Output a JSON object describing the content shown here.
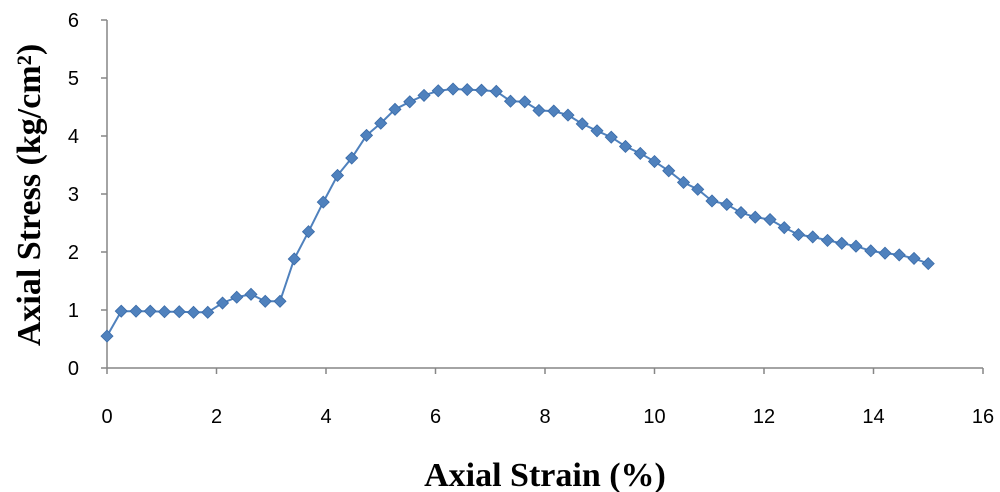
{
  "chart_data": {
    "type": "line",
    "title": "",
    "xlabel": "Axial Strain (%)",
    "ylabel": "Axial Stress (kg/cm²)",
    "xlim": [
      0,
      16
    ],
    "ylim": [
      0,
      6
    ],
    "x_ticks": [
      "0",
      "2",
      "4",
      "6",
      "8",
      "10",
      "12",
      "14",
      "16"
    ],
    "y_ticks": [
      "0",
      "1",
      "2",
      "3",
      "4",
      "5",
      "6"
    ],
    "grid": false,
    "legend": "none",
    "series_color": "#4F81BD",
    "series": [
      {
        "x": [
          0,
          0.26,
          0.53,
          0.79,
          1.05,
          1.32,
          1.58,
          1.84,
          2.11,
          2.37,
          2.63,
          2.89,
          3.16,
          3.42,
          3.68,
          3.95,
          4.21,
          4.47,
          4.74,
          5.0,
          5.26,
          5.53,
          5.79,
          6.05,
          6.32,
          6.58,
          6.84,
          7.11,
          7.37,
          7.63,
          7.89,
          8.16,
          8.42,
          8.68,
          8.95,
          9.21,
          9.47,
          9.74,
          10.0,
          10.26,
          10.53,
          10.79,
          11.05,
          11.32,
          11.58,
          11.84,
          12.11,
          12.37,
          12.63,
          12.89,
          13.16,
          13.42,
          13.68,
          13.95,
          14.21,
          14.47,
          14.74,
          15.0
        ],
        "values": [
          0.55,
          0.98,
          0.98,
          0.98,
          0.97,
          0.97,
          0.96,
          0.96,
          1.12,
          1.22,
          1.27,
          1.15,
          1.15,
          1.88,
          2.35,
          2.86,
          3.32,
          3.62,
          4.01,
          4.22,
          4.46,
          4.59,
          4.7,
          4.78,
          4.81,
          4.8,
          4.79,
          4.77,
          4.6,
          4.59,
          4.44,
          4.43,
          4.36,
          4.21,
          4.09,
          3.98,
          3.82,
          3.7,
          3.56,
          3.4,
          3.2,
          3.08,
          2.88,
          2.82,
          2.68,
          2.6,
          2.56,
          2.42,
          2.3,
          2.26,
          2.2,
          2.15,
          2.1,
          2.02,
          1.98,
          1.95,
          1.89,
          1.8
        ]
      }
    ]
  }
}
